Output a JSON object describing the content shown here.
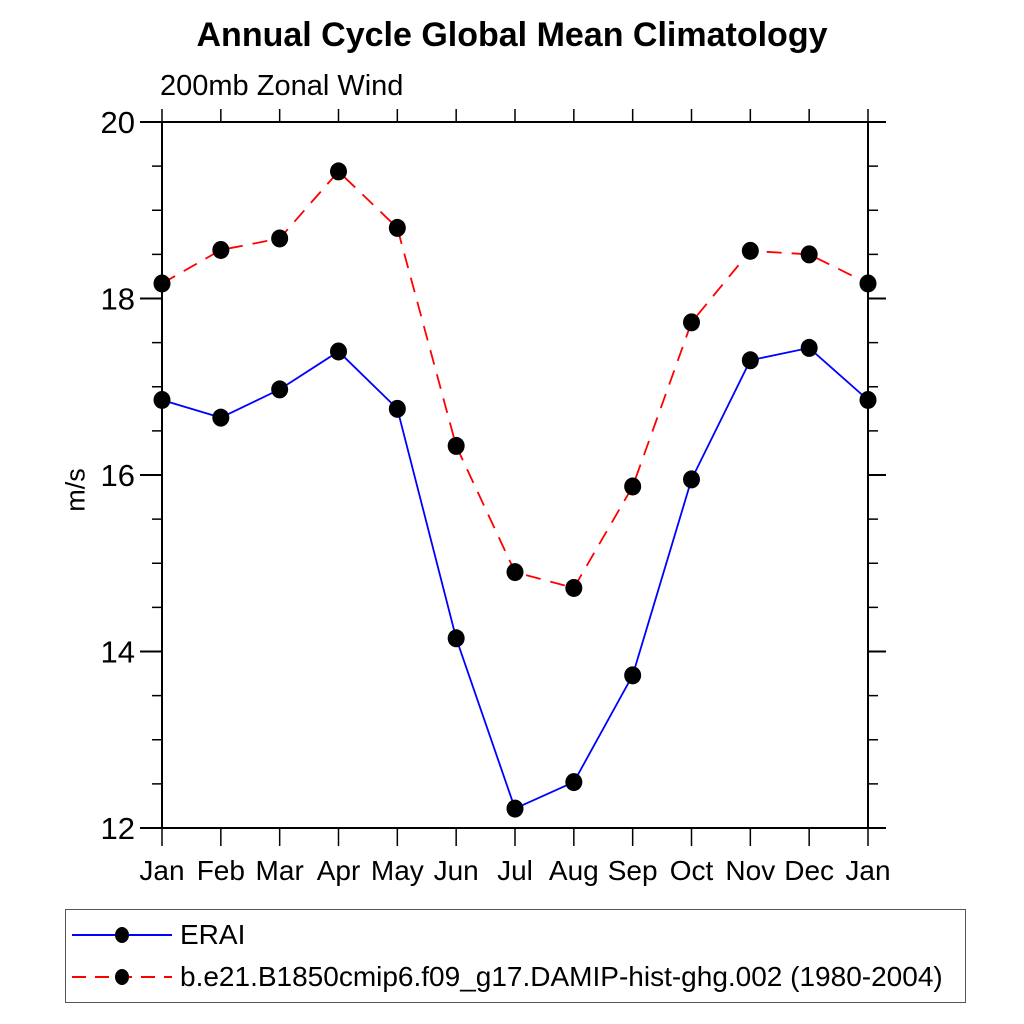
{
  "title": "Annual Cycle Global Mean Climatology",
  "subtitle": "200mb Zonal Wind",
  "chart_data": {
    "type": "line",
    "title": "Annual Cycle Global Mean Climatology",
    "subtitle": "200mb Zonal Wind",
    "xlabel": "",
    "ylabel": "m/s",
    "ylim": [
      12,
      20
    ],
    "ytick_major": [
      12,
      14,
      16,
      18,
      20
    ],
    "ytick_minor_step": 0.5,
    "categories": [
      "Jan",
      "Feb",
      "Mar",
      "Apr",
      "May",
      "Jun",
      "Jul",
      "Aug",
      "Sep",
      "Oct",
      "Nov",
      "Dec",
      "Jan"
    ],
    "grid": false,
    "legend_position": "bottom-left-box",
    "marker": {
      "shape": "circle",
      "color": "#000000",
      "radius": 8.5
    },
    "axis_color": "#000000",
    "series": [
      {
        "name": "ERAI",
        "color": "#0000ff",
        "style": "solid",
        "values": [
          16.85,
          16.65,
          16.97,
          17.4,
          16.75,
          14.15,
          12.22,
          12.52,
          13.73,
          15.95,
          17.3,
          17.44,
          16.85
        ]
      },
      {
        "name": "b.e21.B1850cmip6.f09_g17.DAMIP-hist-ghg.002 (1980-2004)",
        "color": "#ff0000",
        "style": "dashed",
        "values": [
          18.17,
          18.55,
          18.68,
          19.44,
          18.8,
          16.33,
          14.9,
          14.72,
          15.87,
          17.73,
          18.54,
          18.5,
          18.17
        ]
      }
    ]
  }
}
